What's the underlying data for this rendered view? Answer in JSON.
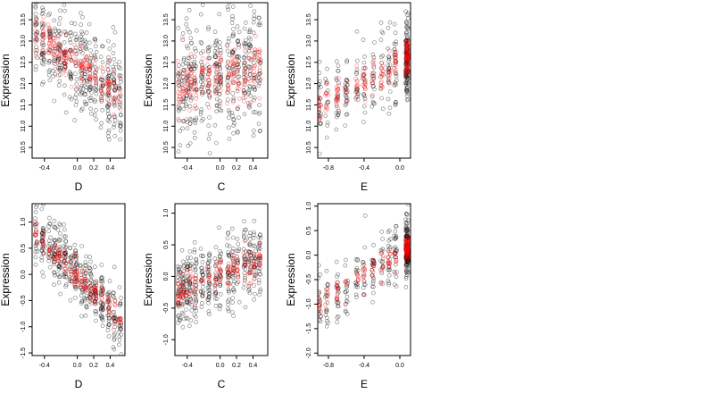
{
  "chart_data": [
    {
      "id": "top-left",
      "type": "scatter",
      "xlabel": "D",
      "ylabel": "Expression",
      "xlim": [
        -0.55,
        0.58
      ],
      "ylim": [
        10.25,
        13.9
      ],
      "xticks": [
        -0.4,
        0.0,
        0.2,
        0.4
      ],
      "xtick_labels": [
        "-0.4",
        "0.0",
        "0.2",
        "0.4"
      ],
      "yticks": [
        10.5,
        11.0,
        11.5,
        12.0,
        12.5,
        13.0,
        13.5
      ],
      "ytick_labels": [
        "10.5",
        "11.0",
        "11.5",
        "12.0",
        "12.5",
        "13.0",
        "13.5"
      ],
      "x_groups": [
        -0.5,
        -0.42,
        -0.34,
        -0.28,
        -0.22,
        -0.15,
        -0.08,
        -0.02,
        0.05,
        0.1,
        0.16,
        0.22,
        0.3,
        0.38,
        0.45,
        0.52
      ],
      "trend": {
        "type": "linear",
        "x0": -0.5,
        "y0": 13.2,
        "x1": 0.52,
        "y1": 11.7
      },
      "spread": 0.55,
      "series": [
        {
          "role": "observed",
          "color": "#000000",
          "opacity": 0.55,
          "count": 420
        },
        {
          "role": "fitted",
          "color": "#ff0000",
          "opacity": 0.5,
          "count": 210
        }
      ]
    },
    {
      "id": "top-middle",
      "type": "scatter",
      "xlabel": "C",
      "ylabel": "Expression",
      "xlim": [
        -0.55,
        0.58
      ],
      "ylim": [
        10.25,
        13.9
      ],
      "xticks": [
        -0.4,
        0.0,
        0.2,
        0.4
      ],
      "xtick_labels": [
        "-0.4",
        "0.0",
        "0.2",
        "0.4"
      ],
      "yticks": [
        10.5,
        11.0,
        11.5,
        12.0,
        12.5,
        13.0,
        13.5
      ],
      "ytick_labels": [
        "10.5",
        "11.0",
        "11.5",
        "12.0",
        "12.5",
        "13.0",
        "13.5"
      ],
      "x_groups": [
        -0.5,
        -0.45,
        -0.4,
        -0.36,
        -0.3,
        -0.22,
        -0.14,
        -0.05,
        0.0,
        0.1,
        0.16,
        0.22,
        0.3,
        0.36,
        0.42,
        0.48
      ],
      "trend": {
        "type": "linear",
        "x0": -0.5,
        "y0": 12.0,
        "x1": 0.52,
        "y1": 12.35
      },
      "spread": 0.7,
      "series": [
        {
          "role": "observed",
          "color": "#000000",
          "opacity": 0.55,
          "count": 420
        },
        {
          "role": "fitted",
          "color": "#ff0000",
          "opacity": 0.5,
          "count": 210
        }
      ]
    },
    {
      "id": "top-right",
      "type": "scatter",
      "xlabel": "E",
      "ylabel": "Expression",
      "xlim": [
        -0.92,
        0.12
      ],
      "ylim": [
        10.25,
        13.9
      ],
      "xticks": [
        -0.8,
        -0.4,
        0.0
      ],
      "xtick_labels": [
        "-0.8",
        "-0.4",
        "0.0"
      ],
      "yticks": [
        10.5,
        11.0,
        11.5,
        12.0,
        12.5,
        13.0,
        13.5
      ],
      "ytick_labels": [
        "10.5",
        "11.0",
        "11.5",
        "12.0",
        "12.5",
        "13.0",
        "13.5"
      ],
      "x_groups": [
        -0.9,
        -0.82,
        -0.7,
        -0.6,
        -0.48,
        -0.4,
        -0.3,
        -0.2,
        -0.12,
        -0.05,
        0.08,
        0.08,
        0.08,
        0.08,
        0.08,
        0.08
      ],
      "trend": {
        "type": "linear",
        "x0": -0.9,
        "y0": 11.5,
        "x1": 0.08,
        "y1": 12.6
      },
      "spread": 0.45,
      "series": [
        {
          "role": "observed",
          "color": "#000000",
          "opacity": 0.55,
          "count": 320
        },
        {
          "role": "fitted",
          "color": "#ff0000",
          "opacity": 0.5,
          "count": 200
        }
      ]
    },
    {
      "id": "bottom-left",
      "type": "scatter",
      "xlabel": "D",
      "ylabel": "Expression",
      "xlim": [
        -0.55,
        0.58
      ],
      "ylim": [
        -1.55,
        1.35
      ],
      "xticks": [
        -0.4,
        0.0,
        0.2,
        0.4
      ],
      "xtick_labels": [
        "-0.4",
        "0.0",
        "0.2",
        "0.4"
      ],
      "yticks": [
        -1.5,
        -1.0,
        -0.5,
        0.0,
        0.5,
        1.0
      ],
      "ytick_labels": [
        "-1.5",
        "-1.0",
        "-0.5",
        "0.0",
        "0.5",
        "1.0"
      ],
      "x_groups": [
        -0.5,
        -0.42,
        -0.34,
        -0.28,
        -0.22,
        -0.15,
        -0.08,
        -0.02,
        0.05,
        0.1,
        0.16,
        0.22,
        0.3,
        0.38,
        0.45,
        0.52
      ],
      "trend": {
        "type": "linear",
        "x0": -0.5,
        "y0": 0.8,
        "x1": 0.52,
        "y1": -0.85
      },
      "spread": 0.3,
      "series": [
        {
          "role": "observed",
          "color": "#000000",
          "opacity": 0.55,
          "count": 420
        },
        {
          "role": "fitted",
          "color": "#ff0000",
          "opacity": 0.6,
          "count": 150
        }
      ]
    },
    {
      "id": "bottom-middle",
      "type": "scatter",
      "xlabel": "C",
      "ylabel": "Expression",
      "xlim": [
        -0.55,
        0.58
      ],
      "ylim": [
        -1.25,
        1.15
      ],
      "xticks": [
        -0.4,
        0.0,
        0.2,
        0.4
      ],
      "xtick_labels": [
        "-0.4",
        "0.0",
        "0.2",
        "0.4"
      ],
      "yticks": [
        -1.0,
        -0.5,
        0.0,
        0.5,
        1.0
      ],
      "ytick_labels": [
        "-1.0",
        "-0.5",
        "0.0",
        "0.5",
        "1.0"
      ],
      "x_groups": [
        -0.5,
        -0.45,
        -0.4,
        -0.36,
        -0.3,
        -0.22,
        -0.14,
        -0.05,
        0.0,
        0.1,
        0.16,
        0.22,
        0.3,
        0.36,
        0.42,
        0.48
      ],
      "trend": {
        "type": "linear",
        "x0": -0.5,
        "y0": -0.25,
        "x1": 0.52,
        "y1": 0.3
      },
      "spread": 0.3,
      "series": [
        {
          "role": "observed",
          "color": "#000000",
          "opacity": 0.55,
          "count": 420
        },
        {
          "role": "fitted",
          "color": "#ff0000",
          "opacity": 0.6,
          "count": 150
        }
      ]
    },
    {
      "id": "bottom-right",
      "type": "scatter",
      "xlabel": "E",
      "ylabel": "Expression",
      "xlim": [
        -0.92,
        0.12
      ],
      "ylim": [
        -2.05,
        1.05
      ],
      "xticks": [
        -0.8,
        -0.4,
        0.0
      ],
      "xtick_labels": [
        "-0.8",
        "-0.4",
        "0.0"
      ],
      "yticks": [
        -2.0,
        -1.5,
        -1.0,
        -0.5,
        0.0,
        0.5,
        1.0
      ],
      "ytick_labels": [
        "-2.0",
        "-1.5",
        "-1.0",
        "-0.5",
        "0.0",
        "0.5",
        "1.0"
      ],
      "x_groups": [
        -0.9,
        -0.82,
        -0.7,
        -0.6,
        -0.48,
        -0.4,
        -0.3,
        -0.2,
        -0.12,
        -0.05,
        0.08,
        0.08,
        0.08,
        0.08,
        0.08,
        0.08
      ],
      "trend": {
        "type": "linear",
        "x0": -0.9,
        "y0": -1.0,
        "x1": 0.08,
        "y1": 0.15
      },
      "spread": 0.3,
      "series": [
        {
          "role": "observed",
          "color": "#000000",
          "opacity": 0.55,
          "count": 320
        },
        {
          "role": "fitted",
          "color": "#ff0000",
          "opacity": 0.6,
          "count": 150
        }
      ]
    }
  ]
}
